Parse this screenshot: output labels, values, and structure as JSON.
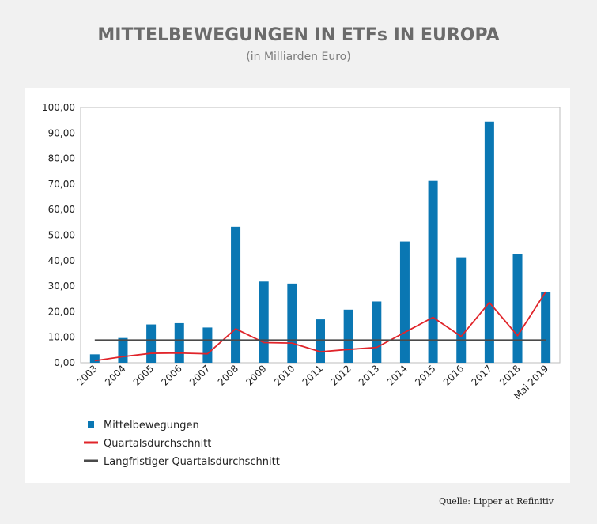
{
  "title": "MITTELBEWEGUNGEN IN ETFs IN EUROPA",
  "subtitle": "(in Milliarden Euro)",
  "source": "Quelle: Lipper at Refinitiv",
  "colors": {
    "bars": "#0a77b3",
    "quarterly_avg": "#e0242a",
    "longterm_avg": "#4a4a4a"
  },
  "chart_data": {
    "type": "bar",
    "categories": [
      "2003",
      "2004",
      "2005",
      "2006",
      "2007",
      "2008",
      "2009",
      "2010",
      "2011",
      "2012",
      "2013",
      "2014",
      "2015",
      "2016",
      "2017",
      "2018",
      "Mai 2019"
    ],
    "y_tick_labels": [
      "0,00",
      "10,00",
      "20,00",
      "30,00",
      "40,00",
      "50,00",
      "60,00",
      "70,00",
      "80,00",
      "90,00",
      "100,00"
    ],
    "ylim": [
      0,
      100
    ],
    "grid": false,
    "legend_position": "bottom-left",
    "series": [
      {
        "name": "Mittelbewegungen",
        "kind": "bar",
        "values": [
          3.3,
          9.7,
          15.0,
          15.5,
          13.8,
          53.3,
          31.8,
          31.0,
          17.0,
          20.8,
          24.0,
          47.5,
          71.3,
          41.3,
          94.5,
          42.5,
          27.8
        ]
      },
      {
        "name": "Quartalsdurchschnitt",
        "kind": "line",
        "values": [
          0.8,
          2.4,
          3.7,
          3.8,
          3.5,
          13.3,
          7.9,
          7.7,
          4.3,
          5.2,
          6.0,
          11.9,
          17.8,
          10.3,
          23.6,
          10.6,
          27.8
        ]
      },
      {
        "name": "Langfristiger Quartalsdurchschnitt",
        "kind": "line",
        "values": [
          8.8,
          8.8,
          8.8,
          8.8,
          8.8,
          8.8,
          8.8,
          8.8,
          8.8,
          8.8,
          8.8,
          8.8,
          8.8,
          8.8,
          8.8,
          8.8,
          8.8
        ]
      }
    ]
  }
}
